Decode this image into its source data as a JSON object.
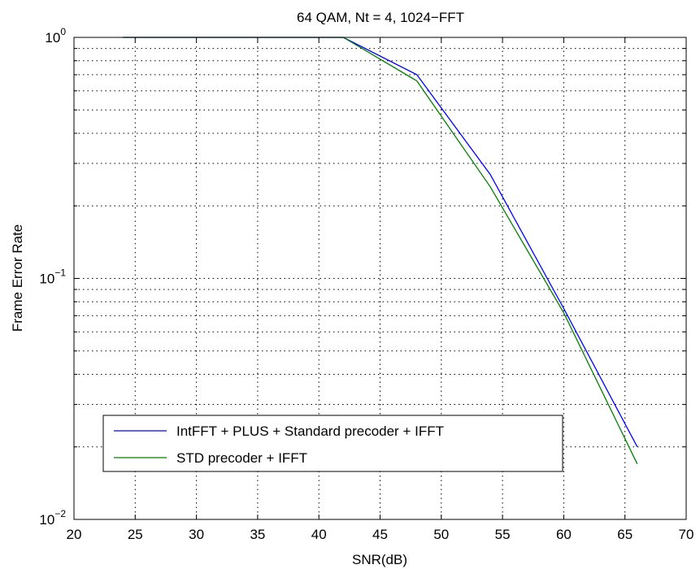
{
  "chart_data": {
    "type": "line",
    "title": "64 QAM, Nt = 4, 1024−FFT",
    "xlabel": "SNR(dB)",
    "ylabel": "Frame Error Rate",
    "xlim": [
      20,
      70
    ],
    "ylim": [
      0.01,
      1
    ],
    "yscale": "log",
    "grid": true,
    "legend_position": "bottom-left",
    "x_ticks": [
      {
        "value": 20,
        "label": "20"
      },
      {
        "value": 25,
        "label": "25"
      },
      {
        "value": 30,
        "label": "30"
      },
      {
        "value": 35,
        "label": "35"
      },
      {
        "value": 40,
        "label": "40"
      },
      {
        "value": 45,
        "label": "45"
      },
      {
        "value": 50,
        "label": "50"
      },
      {
        "value": 55,
        "label": "55"
      },
      {
        "value": 60,
        "label": "60"
      },
      {
        "value": 65,
        "label": "65"
      },
      {
        "value": 70,
        "label": "70"
      }
    ],
    "y_ticks": [
      {
        "value": 0.01,
        "base": "10",
        "exp": "−2"
      },
      {
        "value": 0.1,
        "base": "10",
        "exp": "−1"
      },
      {
        "value": 1,
        "base": "10",
        "exp": "0"
      }
    ],
    "series": [
      {
        "name": "IntFFT + PLUS + Standard precoder + IFFT",
        "color": "#0000ff",
        "x": [
          24,
          42,
          48,
          54,
          60,
          66
        ],
        "y": [
          1.0,
          1.0,
          0.7,
          0.27,
          0.075,
          0.02
        ]
      },
      {
        "name": "STD precoder + IFFT",
        "color": "#008000",
        "x": [
          24,
          42,
          48,
          54,
          60,
          66
        ],
        "y": [
          1.0,
          1.0,
          0.66,
          0.24,
          0.072,
          0.017
        ]
      }
    ]
  }
}
